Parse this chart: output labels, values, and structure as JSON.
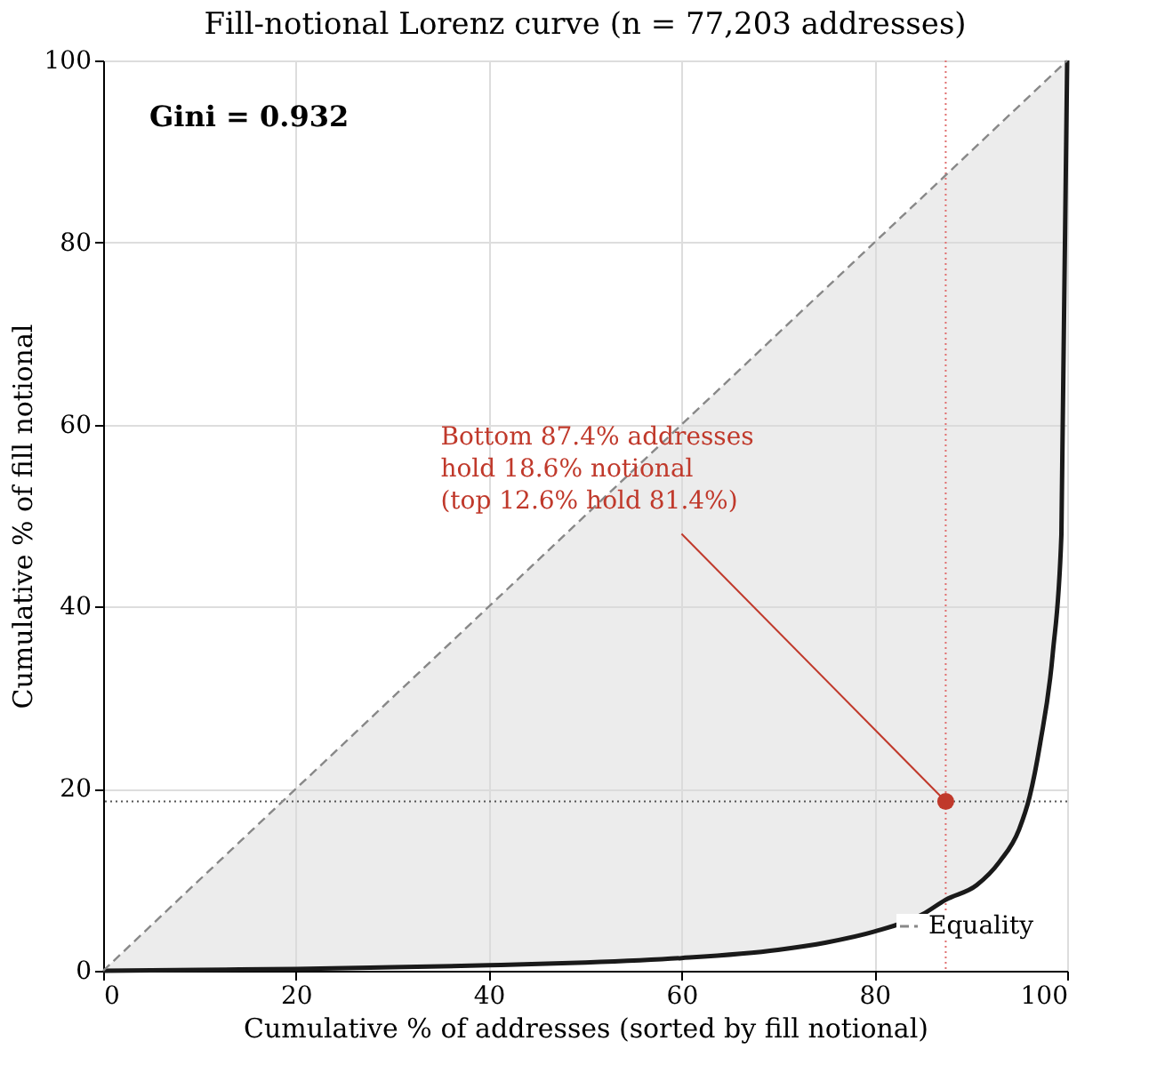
{
  "chart_data": {
    "type": "line",
    "title": "Fill-notional Lorenz curve (n = 77,203 addresses)",
    "xlabel": "Cumulative % of addresses (sorted by fill notional)",
    "ylabel": "Cumulative % of fill notional",
    "series": [
      {
        "color": "#1a1a1a",
        "x": [
          0,
          10,
          20,
          30,
          40,
          50,
          60,
          70,
          75,
          80,
          85,
          87.4,
          90.6,
          93,
          95,
          96.1,
          97.2,
          98.5,
          99.4,
          100
        ],
        "values": [
          0,
          0.1,
          0.2,
          0.4,
          0.6,
          0.9,
          1.4,
          2.3,
          3.1,
          4.3,
          6.2,
          7.8,
          9.4,
          12,
          15.5,
          19.1,
          25,
          34.8,
          47.9,
          100
        ]
      },
      {
        "type": "line",
        "name": "Equality",
        "color": "#888888",
        "line_style": "dashed",
        "x": [
          0,
          100
        ],
        "values": [
          0,
          100
        ]
      },
      {
        "type": "scatter",
        "color": "#c0392b",
        "x": [
          87.4
        ],
        "values": [
          18.6
        ]
      }
    ],
    "ref_lines": [
      {
        "axis": "x",
        "value": 87.4,
        "color": "#e07070",
        "line_style": "dotted"
      },
      {
        "axis": "y",
        "value": 18.6,
        "color": "#555555",
        "line_style": "dotted"
      }
    ],
    "annotations": [
      "Gini = 0.932",
      {
        "text": "Bottom 87.4% addresses\nhold 18.6% notional\n(top 12.6% hold 81.4%)",
        "x": 87.4,
        "y": 18.6
      }
    ],
    "xlim": [
      0,
      100
    ],
    "ylim": [
      0,
      100
    ],
    "xticks": [
      0,
      20,
      40,
      60,
      80,
      100
    ],
    "yticks": [
      0,
      20,
      40,
      60,
      80,
      100
    ],
    "grid": true,
    "legend": "bottom right"
  }
}
